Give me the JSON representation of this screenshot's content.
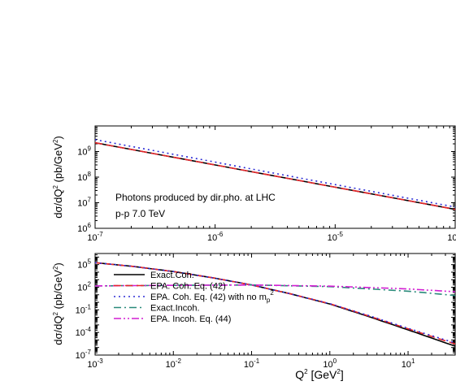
{
  "chart_data": [
    {
      "type": "line",
      "panel": "top",
      "ylabel": "dσ/dQ² (pb/GeV²)",
      "xlabel": "",
      "x_scale": "log",
      "y_scale": "log",
      "xlim": [
        1e-07,
        0.0001
      ],
      "ylim": [
        1000000.0,
        10000000000.0
      ],
      "annotations": [
        "Photons produced by dir.pho. at LHC",
        "p-p 7.0 TeV"
      ],
      "series": [
        {
          "style": "solid",
          "color": "#000000",
          "x": [
            1e-07,
            0.0001
          ],
          "y": [
            2200000000.0,
            5500000.0
          ]
        },
        {
          "style": "dashed",
          "color": "#e8262a",
          "x": [
            1e-07,
            0.0001
          ],
          "y": [
            2200000000.0,
            5500000.0
          ]
        },
        {
          "style": "dotted",
          "color": "#2b2bd6",
          "x": [
            1e-07,
            0.0001
          ],
          "y": [
            2900000000.0,
            6800000.0
          ]
        }
      ]
    },
    {
      "type": "line",
      "panel": "bottom",
      "ylabel": "dσ/dQ² (pb/GeV²)",
      "xlabel": "Q² [GeV²]",
      "x_scale": "log",
      "y_scale": "log",
      "xlim": [
        0.001,
        40
      ],
      "ylim": [
        1e-07,
        3000000.0
      ],
      "legend_position": "bottom-left",
      "series": [
        {
          "name": "Exact.Coh.",
          "style": "solid",
          "color": "#000000",
          "x": [
            0.001,
            0.003,
            0.01,
            0.03,
            0.1,
            0.3,
            1,
            3,
            10,
            40
          ],
          "y": [
            180000,
            60000,
            12000,
            2000,
            200,
            15,
            0.6,
            0.015,
            0.00022,
            1.5e-06
          ]
        },
        {
          "name": "EPA. Coh. Eq. (42)",
          "style": "dashed",
          "color": "#e8262a",
          "x": [
            0.001,
            0.003,
            0.01,
            0.03,
            0.1,
            0.3,
            1,
            3,
            10,
            40
          ],
          "y": [
            180000,
            60000,
            12000,
            2000,
            200,
            15,
            0.65,
            0.018,
            0.0003,
            3e-06
          ]
        },
        {
          "name": "EPA. Coh. Eq. (42) with no mp²",
          "style": "dotted",
          "color": "#2b2bd6",
          "x": [
            0.001,
            0.003,
            0.01,
            0.03,
            0.1,
            0.3,
            1,
            3,
            10,
            40
          ],
          "y": [
            180000,
            60000,
            12000,
            2000,
            200,
            15,
            0.65,
            0.02,
            0.00035,
            4e-06
          ]
        },
        {
          "name": "Exact.Incoh.",
          "style": "dashdot",
          "color": "#2a8a7a",
          "x": [
            0.001,
            0.01,
            0.1,
            1,
            10,
            40
          ],
          "y": [
            150,
            180,
            200,
            120,
            30,
            8
          ]
        },
        {
          "name": "EPA. Incoh. Eq. (44)",
          "style": "dashdotdot",
          "color": "#d21fd2",
          "x": [
            0.001,
            0.01,
            0.1,
            1,
            10,
            40
          ],
          "y": [
            150,
            180,
            200,
            140,
            60,
            25
          ]
        }
      ]
    }
  ],
  "labels": {
    "top_ylabel": "dσ/dQ² (pb/GeV²)",
    "bottom_ylabel": "dσ/dQ² (pb/GeV²)",
    "xlabel": "Q² [GeV²]",
    "annotation_line1": "Photons produced by dir.pho. at LHC",
    "annotation_line2": "p-p 7.0 TeV",
    "legend": [
      "Exact.Coh.",
      "EPA. Coh. Eq. (42)",
      "EPA. Coh. Eq. (42) with no m",
      "Exact.Incoh.",
      "EPA. Incoh. Eq. (44)"
    ],
    "legend_sub": "p",
    "legend_sup": "2"
  }
}
